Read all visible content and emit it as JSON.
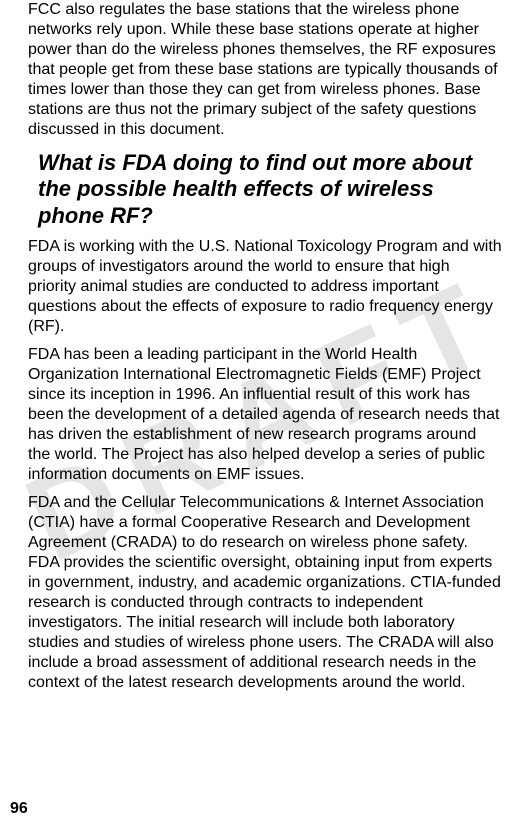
{
  "watermark": "DRAFT",
  "paragraphs": {
    "p1": "FCC also regulates the base stations that the wireless phone networks rely upon. While these base stations operate at higher power than do the wireless phones themselves, the RF exposures that people get from these base stations are typically thousands of times lower than those they can get from wireless phones. Base stations are thus not the primary subject of the safety questions discussed in this document.",
    "heading": "What is FDA doing to find out more about the possible health effects of wireless phone RF?",
    "p2": "FDA is working with the U.S. National Toxicology Program and with groups of investigators around the world to ensure that high priority animal studies are conducted to address important questions about the effects of exposure to radio frequency energy (RF).",
    "p3": "FDA has been a leading participant in the World Health Organization International Electromagnetic Fields (EMF) Project since its inception in 1996. An influential result of this work has been the development of a detailed agenda of research needs that has driven the establishment of new research programs around the world. The Project has also helped develop a series of public information documents on EMF issues.",
    "p4": "FDA and the Cellular Telecommunications & Internet Association (CTIA) have a formal Cooperative Research and Development Agreement (CRADA) to do research on wireless phone safety. FDA provides the scientific oversight, obtaining input from experts in government, industry, and academic organizations. CTIA-funded research is conducted through contracts to independent investigators. The initial research will include both laboratory studies and studies of wireless phone users. The CRADA will also include a broad assessment of additional research needs in the context of the latest research developments around the world."
  },
  "pageNumber": "96"
}
